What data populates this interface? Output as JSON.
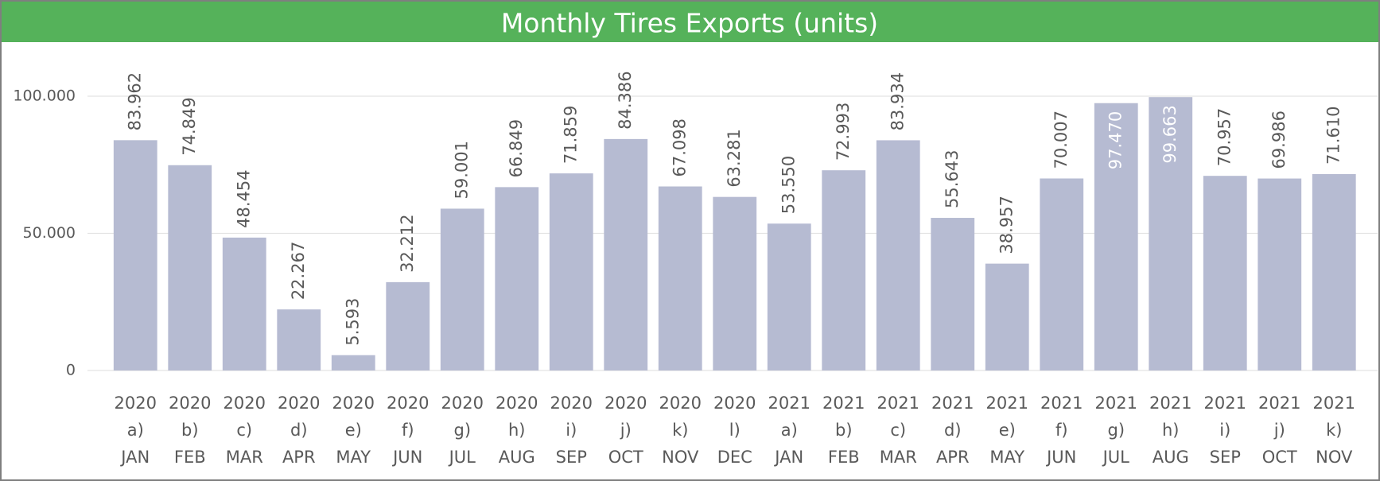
{
  "chart_data": {
    "type": "bar",
    "title": "Monthly Tires Exports (units)",
    "categories": [
      [
        "2020",
        "a)",
        "JAN"
      ],
      [
        "2020",
        "b)",
        "FEB"
      ],
      [
        "2020",
        "c)",
        "MAR"
      ],
      [
        "2020",
        "d)",
        "APR"
      ],
      [
        "2020",
        "e)",
        "MAY"
      ],
      [
        "2020",
        "f)",
        "JUN"
      ],
      [
        "2020",
        "g)",
        "JUL"
      ],
      [
        "2020",
        "h)",
        "AUG"
      ],
      [
        "2020",
        "i)",
        "SEP"
      ],
      [
        "2020",
        "j)",
        "OCT"
      ],
      [
        "2020",
        "k)",
        "NOV"
      ],
      [
        "2020",
        "l)",
        "DEC"
      ],
      [
        "2021",
        "a)",
        "JAN"
      ],
      [
        "2021",
        "b)",
        "FEB"
      ],
      [
        "2021",
        "c)",
        "MAR"
      ],
      [
        "2021",
        "d)",
        "APR"
      ],
      [
        "2021",
        "e)",
        "MAY"
      ],
      [
        "2021",
        "f)",
        "JUN"
      ],
      [
        "2021",
        "g)",
        "JUL"
      ],
      [
        "2021",
        "h)",
        "AUG"
      ],
      [
        "2021",
        "i)",
        "SEP"
      ],
      [
        "2021",
        "j)",
        "OCT"
      ],
      [
        "2021",
        "k)",
        "NOV"
      ]
    ],
    "values": [
      83962,
      74849,
      48454,
      22267,
      5593,
      32212,
      59001,
      66849,
      71859,
      84386,
      67098,
      63281,
      53550,
      72993,
      83934,
      55643,
      38957,
      70007,
      97470,
      99663,
      70957,
      69986,
      71610
    ],
    "value_labels": [
      "83.962",
      "74.849",
      "48.454",
      "22.267",
      "5.593",
      "32.212",
      "59.001",
      "66.849",
      "71.859",
      "84.386",
      "67.098",
      "63.281",
      "53.550",
      "72.993",
      "83.934",
      "55.643",
      "38.957",
      "70.007",
      "97.470",
      "99.663",
      "70.957",
      "69.986",
      "71.610"
    ],
    "color": "#b6bbd2",
    "ylim": [
      0,
      120000
    ],
    "yticks": [
      0,
      {
        "value": 50000,
        "label": "50.000"
      },
      {
        "value": 100000,
        "label": "100.000"
      }
    ],
    "grid": true
  }
}
